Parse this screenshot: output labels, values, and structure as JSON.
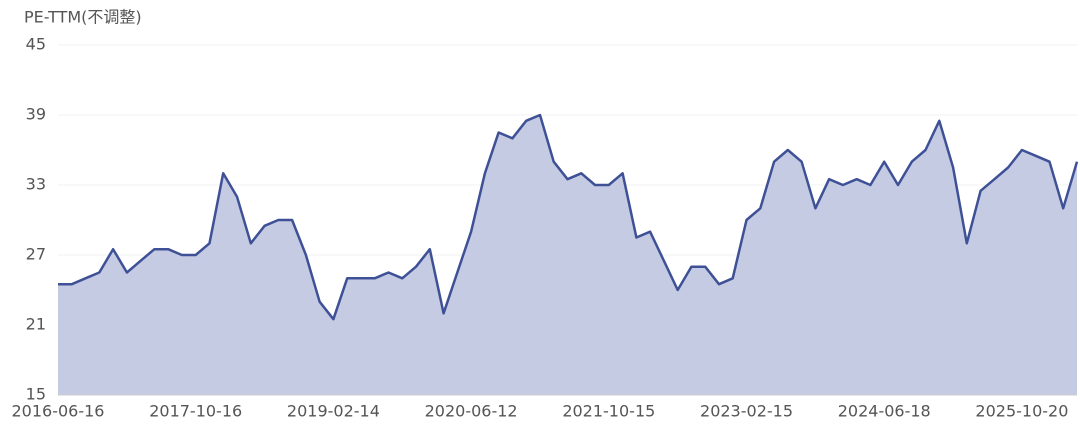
{
  "chart_data": {
    "type": "area",
    "title": "PE-TTM(不调整)",
    "categories": [
      "2016-06-16",
      null,
      null,
      null,
      null,
      null,
      null,
      null,
      null,
      null,
      "2017-10-16",
      null,
      null,
      null,
      null,
      null,
      null,
      null,
      null,
      null,
      "2019-02-14",
      null,
      null,
      null,
      null,
      null,
      null,
      null,
      null,
      null,
      "2020-06-12",
      null,
      null,
      null,
      null,
      null,
      null,
      null,
      null,
      null,
      "2021-10-15",
      null,
      null,
      null,
      null,
      null,
      null,
      null,
      null,
      null,
      "2023-02-15",
      null,
      null,
      null,
      null,
      null,
      null,
      null,
      null,
      null,
      "2024-06-18",
      null,
      null,
      null,
      null,
      null,
      null,
      null,
      null,
      null,
      "2025-10-20",
      null,
      null,
      null,
      null
    ],
    "values": [
      24.5,
      24.5,
      25,
      25.5,
      27.5,
      25.5,
      26.5,
      27.5,
      27.5,
      27,
      27,
      28,
      34,
      32,
      28,
      29.5,
      30,
      30,
      27,
      23,
      21.5,
      25,
      25,
      25,
      25.5,
      25,
      26,
      27.5,
      22,
      25.5,
      29,
      34,
      37.5,
      37,
      38.5,
      39,
      35,
      33.5,
      34,
      33,
      33,
      34,
      28.5,
      29,
      26.5,
      24,
      26,
      26,
      24.5,
      25,
      30,
      31,
      35,
      36,
      35,
      31,
      33.5,
      33,
      33.5,
      33,
      35,
      33,
      35,
      36,
      38.5,
      34.5,
      28,
      32.5,
      33.5,
      34.5,
      36,
      35.5,
      35,
      31,
      35
    ],
    "color": "#3f5196",
    "fill": "#c6cbe4",
    "ylim": [
      15,
      45
    ],
    "yticks": [
      15,
      21,
      27,
      33,
      39,
      45
    ],
    "grid": true
  }
}
